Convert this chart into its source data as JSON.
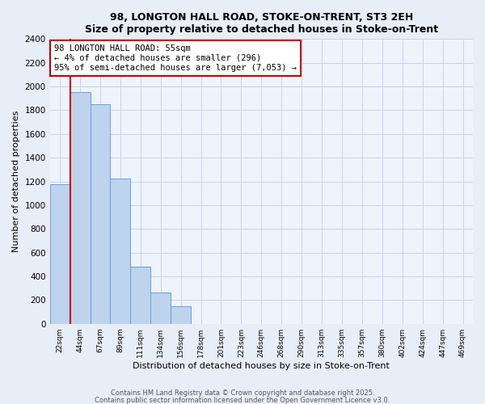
{
  "title": "98, LONGTON HALL ROAD, STOKE-ON-TRENT, ST3 2EH",
  "subtitle": "Size of property relative to detached houses in Stoke-on-Trent",
  "xlabel": "Distribution of detached houses by size in Stoke-on-Trent",
  "ylabel": "Number of detached properties",
  "bins": [
    "22sqm",
    "44sqm",
    "67sqm",
    "89sqm",
    "111sqm",
    "134sqm",
    "156sqm",
    "178sqm",
    "201sqm",
    "223sqm",
    "246sqm",
    "268sqm",
    "290sqm",
    "313sqm",
    "335sqm",
    "357sqm",
    "380sqm",
    "402sqm",
    "424sqm",
    "447sqm",
    "469sqm"
  ],
  "values": [
    1175,
    1950,
    1850,
    1225,
    480,
    265,
    150,
    0,
    0,
    0,
    0,
    0,
    0,
    0,
    0,
    0,
    0,
    0,
    0,
    0,
    0
  ],
  "red_line_bin_index": 0.5,
  "bar_color": "#bed3ed",
  "bar_edge_color": "#6a9fd8",
  "red_line_color": "#cc0000",
  "annotation_line1": "98 LONGTON HALL ROAD: 55sqm",
  "annotation_line2": "← 4% of detached houses are smaller (296)",
  "annotation_line3": "95% of semi-detached houses are larger (7,053) →",
  "annotation_box_color": "#ffffff",
  "annotation_box_edge": "#cc0000",
  "ylim": [
    0,
    2400
  ],
  "yticks": [
    0,
    200,
    400,
    600,
    800,
    1000,
    1200,
    1400,
    1600,
    1800,
    2000,
    2200,
    2400
  ],
  "footer1": "Contains HM Land Registry data © Crown copyright and database right 2025.",
  "footer2": "Contains public sector information licensed under the Open Government Licence v3.0.",
  "bg_color": "#e8eef8",
  "plot_bg_color": "#eef3fc",
  "grid_color": "#c8d4e8"
}
